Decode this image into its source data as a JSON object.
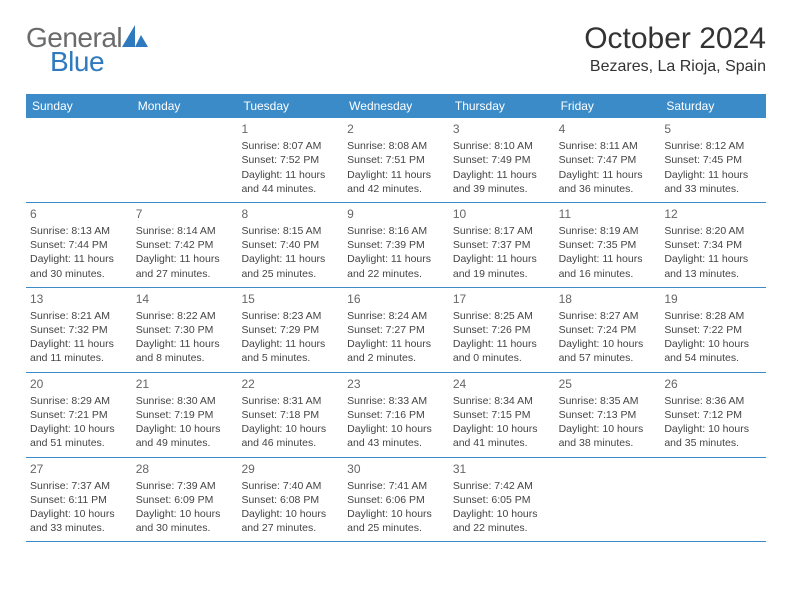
{
  "brand": {
    "name_g": "General",
    "name_b": "Blue"
  },
  "title": "October 2024",
  "location": "Bezares, La Rioja, Spain",
  "colors": {
    "header_bg": "#3b8bc9",
    "header_text": "#ffffff",
    "border": "#3b8bc9",
    "brand_gray": "#6b6b6b",
    "brand_blue": "#2f7abf",
    "text": "#333333",
    "cell_text": "#444444",
    "daynum": "#666666",
    "background": "#ffffff"
  },
  "typography": {
    "title_fontsize": 30,
    "location_fontsize": 16,
    "header_fontsize": 12,
    "cell_fontsize": 10.5,
    "logo_fontsize": 28
  },
  "day_headers": [
    "Sunday",
    "Monday",
    "Tuesday",
    "Wednesday",
    "Thursday",
    "Friday",
    "Saturday"
  ],
  "weeks": [
    [
      {
        "num": "",
        "sunrise": "",
        "sunset": "",
        "daylight": ""
      },
      {
        "num": "",
        "sunrise": "",
        "sunset": "",
        "daylight": ""
      },
      {
        "num": "1",
        "sunrise": "Sunrise: 8:07 AM",
        "sunset": "Sunset: 7:52 PM",
        "daylight": "Daylight: 11 hours and 44 minutes."
      },
      {
        "num": "2",
        "sunrise": "Sunrise: 8:08 AM",
        "sunset": "Sunset: 7:51 PM",
        "daylight": "Daylight: 11 hours and 42 minutes."
      },
      {
        "num": "3",
        "sunrise": "Sunrise: 8:10 AM",
        "sunset": "Sunset: 7:49 PM",
        "daylight": "Daylight: 11 hours and 39 minutes."
      },
      {
        "num": "4",
        "sunrise": "Sunrise: 8:11 AM",
        "sunset": "Sunset: 7:47 PM",
        "daylight": "Daylight: 11 hours and 36 minutes."
      },
      {
        "num": "5",
        "sunrise": "Sunrise: 8:12 AM",
        "sunset": "Sunset: 7:45 PM",
        "daylight": "Daylight: 11 hours and 33 minutes."
      }
    ],
    [
      {
        "num": "6",
        "sunrise": "Sunrise: 8:13 AM",
        "sunset": "Sunset: 7:44 PM",
        "daylight": "Daylight: 11 hours and 30 minutes."
      },
      {
        "num": "7",
        "sunrise": "Sunrise: 8:14 AM",
        "sunset": "Sunset: 7:42 PM",
        "daylight": "Daylight: 11 hours and 27 minutes."
      },
      {
        "num": "8",
        "sunrise": "Sunrise: 8:15 AM",
        "sunset": "Sunset: 7:40 PM",
        "daylight": "Daylight: 11 hours and 25 minutes."
      },
      {
        "num": "9",
        "sunrise": "Sunrise: 8:16 AM",
        "sunset": "Sunset: 7:39 PM",
        "daylight": "Daylight: 11 hours and 22 minutes."
      },
      {
        "num": "10",
        "sunrise": "Sunrise: 8:17 AM",
        "sunset": "Sunset: 7:37 PM",
        "daylight": "Daylight: 11 hours and 19 minutes."
      },
      {
        "num": "11",
        "sunrise": "Sunrise: 8:19 AM",
        "sunset": "Sunset: 7:35 PM",
        "daylight": "Daylight: 11 hours and 16 minutes."
      },
      {
        "num": "12",
        "sunrise": "Sunrise: 8:20 AM",
        "sunset": "Sunset: 7:34 PM",
        "daylight": "Daylight: 11 hours and 13 minutes."
      }
    ],
    [
      {
        "num": "13",
        "sunrise": "Sunrise: 8:21 AM",
        "sunset": "Sunset: 7:32 PM",
        "daylight": "Daylight: 11 hours and 11 minutes."
      },
      {
        "num": "14",
        "sunrise": "Sunrise: 8:22 AM",
        "sunset": "Sunset: 7:30 PM",
        "daylight": "Daylight: 11 hours and 8 minutes."
      },
      {
        "num": "15",
        "sunrise": "Sunrise: 8:23 AM",
        "sunset": "Sunset: 7:29 PM",
        "daylight": "Daylight: 11 hours and 5 minutes."
      },
      {
        "num": "16",
        "sunrise": "Sunrise: 8:24 AM",
        "sunset": "Sunset: 7:27 PM",
        "daylight": "Daylight: 11 hours and 2 minutes."
      },
      {
        "num": "17",
        "sunrise": "Sunrise: 8:25 AM",
        "sunset": "Sunset: 7:26 PM",
        "daylight": "Daylight: 11 hours and 0 minutes."
      },
      {
        "num": "18",
        "sunrise": "Sunrise: 8:27 AM",
        "sunset": "Sunset: 7:24 PM",
        "daylight": "Daylight: 10 hours and 57 minutes."
      },
      {
        "num": "19",
        "sunrise": "Sunrise: 8:28 AM",
        "sunset": "Sunset: 7:22 PM",
        "daylight": "Daylight: 10 hours and 54 minutes."
      }
    ],
    [
      {
        "num": "20",
        "sunrise": "Sunrise: 8:29 AM",
        "sunset": "Sunset: 7:21 PM",
        "daylight": "Daylight: 10 hours and 51 minutes."
      },
      {
        "num": "21",
        "sunrise": "Sunrise: 8:30 AM",
        "sunset": "Sunset: 7:19 PM",
        "daylight": "Daylight: 10 hours and 49 minutes."
      },
      {
        "num": "22",
        "sunrise": "Sunrise: 8:31 AM",
        "sunset": "Sunset: 7:18 PM",
        "daylight": "Daylight: 10 hours and 46 minutes."
      },
      {
        "num": "23",
        "sunrise": "Sunrise: 8:33 AM",
        "sunset": "Sunset: 7:16 PM",
        "daylight": "Daylight: 10 hours and 43 minutes."
      },
      {
        "num": "24",
        "sunrise": "Sunrise: 8:34 AM",
        "sunset": "Sunset: 7:15 PM",
        "daylight": "Daylight: 10 hours and 41 minutes."
      },
      {
        "num": "25",
        "sunrise": "Sunrise: 8:35 AM",
        "sunset": "Sunset: 7:13 PM",
        "daylight": "Daylight: 10 hours and 38 minutes."
      },
      {
        "num": "26",
        "sunrise": "Sunrise: 8:36 AM",
        "sunset": "Sunset: 7:12 PM",
        "daylight": "Daylight: 10 hours and 35 minutes."
      }
    ],
    [
      {
        "num": "27",
        "sunrise": "Sunrise: 7:37 AM",
        "sunset": "Sunset: 6:11 PM",
        "daylight": "Daylight: 10 hours and 33 minutes."
      },
      {
        "num": "28",
        "sunrise": "Sunrise: 7:39 AM",
        "sunset": "Sunset: 6:09 PM",
        "daylight": "Daylight: 10 hours and 30 minutes."
      },
      {
        "num": "29",
        "sunrise": "Sunrise: 7:40 AM",
        "sunset": "Sunset: 6:08 PM",
        "daylight": "Daylight: 10 hours and 27 minutes."
      },
      {
        "num": "30",
        "sunrise": "Sunrise: 7:41 AM",
        "sunset": "Sunset: 6:06 PM",
        "daylight": "Daylight: 10 hours and 25 minutes."
      },
      {
        "num": "31",
        "sunrise": "Sunrise: 7:42 AM",
        "sunset": "Sunset: 6:05 PM",
        "daylight": "Daylight: 10 hours and 22 minutes."
      },
      {
        "num": "",
        "sunrise": "",
        "sunset": "",
        "daylight": ""
      },
      {
        "num": "",
        "sunrise": "",
        "sunset": "",
        "daylight": ""
      }
    ]
  ]
}
